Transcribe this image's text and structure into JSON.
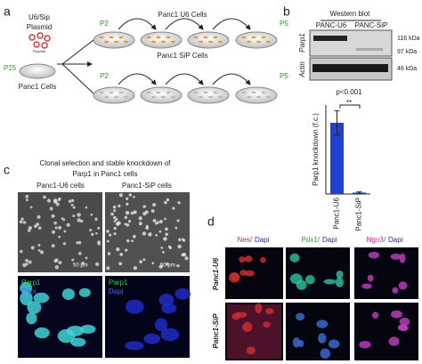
{
  "panel_a": {
    "letter": "a",
    "plasmid": [
      "U6/Sip",
      "Plasmid"
    ],
    "plasmid_small": "Plasmid",
    "p15": "P15",
    "cells": "Panc1 Cells",
    "u6_row": {
      "start": "P2",
      "label": "Panc1 U6 Cells",
      "end": "P5"
    },
    "sip_row": {
      "start": "P2",
      "label": "Panc1 SiP Cells",
      "end": "P5"
    }
  },
  "panel_b": {
    "letter": "b",
    "blot_title": "Western blot",
    "lanes": [
      "PANC-U6",
      "PANC-SiP"
    ],
    "rows": [
      "Parp1",
      "Actin"
    ],
    "markers": [
      "116 kDa",
      "97 kDa",
      "46 kDa"
    ]
  },
  "chart_data": {
    "type": "bar",
    "y_label": "Parp1 knockdown (f.c.)",
    "categories": [
      "Panc1-U6",
      "Panc1-SiP"
    ],
    "values": [
      1.0,
      0.02
    ],
    "errors": [
      0.17,
      0.01
    ],
    "color": "#1f3fd6",
    "ylim": [
      0,
      1.25
    ],
    "annotations": [
      "p<0.001",
      "**"
    ]
  },
  "panel_c": {
    "letter": "c",
    "title": [
      "Clonal selection and stable knockdown of",
      "Parp1 in Panc1 cells"
    ],
    "columns": [
      "Panc1-U6 cells",
      "Panc1-SiP cells"
    ],
    "scale": [
      "50 µm",
      "50 µm"
    ],
    "stain": [
      [
        "Parp1",
        "Dapi"
      ],
      [
        "Parp1",
        "Dapi"
      ]
    ]
  },
  "panel_d": {
    "letter": "d",
    "headers": [
      [
        "Nes/",
        "Dapi"
      ],
      [
        "Pdx1/",
        "Dapi"
      ],
      [
        "Ngn3/",
        "Dapi"
      ]
    ],
    "rows": [
      "Panc1-U6",
      "Panc1-SiP"
    ]
  }
}
